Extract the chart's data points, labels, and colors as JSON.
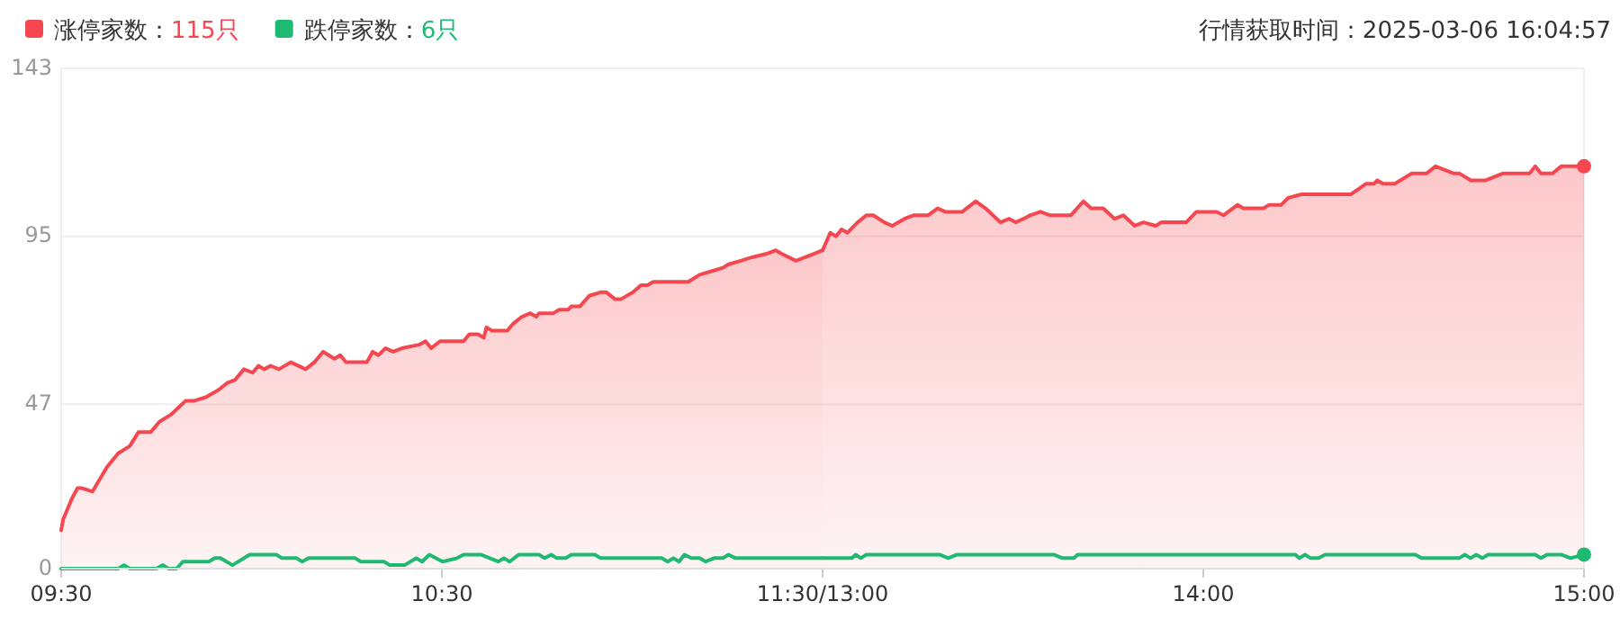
{
  "chart_data": [
    {
      "type": "area",
      "xlim": [
        9.5,
        11.5
      ],
      "xticks": [
        {
          "value": 9.5,
          "label": "09:30"
        },
        {
          "value": 10.5,
          "label": "10:30"
        },
        {
          "value": 11.5,
          "label": "11:30/13:00"
        }
      ],
      "ylim": [
        0,
        143
      ],
      "yticks": [
        0,
        47,
        95,
        143
      ],
      "grid": "y",
      "legend": "top left",
      "series": [
        {
          "name": "涨停家数：115只",
          "color": "#f5474f",
          "x": [
            9.5,
            9.505,
            9.528,
            9.543,
            9.555,
            9.582,
            9.62,
            9.65,
            9.68,
            9.703,
            9.735,
            9.758,
            9.788,
            9.827,
            9.85,
            9.88,
            9.912,
            9.935,
            9.957,
            9.98,
            10.003,
            10.018,
            10.033,
            10.05,
            10.072,
            10.103,
            10.142,
            10.165,
            10.188,
            10.218,
            10.233,
            10.248,
            10.303,
            10.318,
            10.333,
            10.352,
            10.372,
            10.395,
            10.44,
            10.457,
            10.472,
            10.495,
            10.557,
            10.572,
            10.595,
            10.61,
            10.617,
            10.632,
            10.672,
            10.687,
            10.71,
            10.732,
            10.748,
            10.755,
            10.793,
            10.808,
            10.832,
            10.84,
            10.863,
            10.887,
            10.917,
            10.932,
            10.955,
            10.97,
            11.002,
            11.023,
            11.04,
            11.055,
            11.147,
            11.177,
            11.208,
            11.238,
            11.253,
            11.285,
            11.315,
            11.353,
            11.377,
            11.392,
            11.43,
            11.477,
            11.5
          ],
          "values": [
            11,
            14,
            20,
            23,
            23,
            22,
            29,
            33,
            35,
            39,
            39,
            42,
            44,
            48,
            48,
            49,
            51,
            53,
            54,
            57,
            56,
            58,
            57,
            58,
            57,
            59,
            57,
            59,
            62,
            60,
            61,
            59,
            59,
            62,
            61,
            63,
            62,
            63,
            64,
            65,
            63,
            65,
            65,
            67,
            67,
            66,
            69,
            68,
            68,
            70,
            72,
            73,
            72,
            73,
            73,
            74,
            74,
            75,
            75,
            78,
            79,
            79,
            77,
            77,
            79,
            81,
            81,
            82,
            82,
            84,
            85,
            86,
            87,
            88,
            89,
            90,
            91,
            90,
            88,
            90,
            91
          ]
        },
        {
          "name": "跌停家数：6只",
          "type": "line",
          "color": "#1fba72",
          "x": [
            9.5,
            9.65,
            9.665,
            9.68,
            9.75,
            9.767,
            9.782,
            9.803,
            9.82,
            9.888,
            9.903,
            9.918,
            9.95,
            9.995,
            10.065,
            10.08,
            10.118,
            10.133,
            10.15,
            10.272,
            10.287,
            10.348,
            10.363,
            10.402,
            10.433,
            10.448,
            10.467,
            10.502,
            10.54,
            10.557,
            10.602,
            10.648,
            10.663,
            10.678,
            10.702,
            10.755,
            10.77,
            10.787,
            10.802,
            10.825,
            10.84,
            10.902,
            10.917,
            11.078,
            11.093,
            11.108,
            11.123,
            11.137,
            11.155,
            11.177,
            11.193,
            11.215,
            11.238,
            11.253,
            11.27,
            11.5
          ],
          "values": [
            0,
            0,
            1,
            0,
            0,
            1,
            0,
            0,
            2,
            2,
            3,
            3,
            1,
            4,
            4,
            3,
            3,
            2,
            3,
            3,
            2,
            2,
            1,
            1,
            3,
            2,
            4,
            2,
            3,
            4,
            4,
            2,
            3,
            2,
            4,
            4,
            3,
            4,
            3,
            3,
            4,
            4,
            3,
            3,
            2,
            3,
            2,
            4,
            3,
            3,
            2,
            3,
            3,
            4,
            3,
            3
          ]
        }
      ]
    },
    {
      "type": "area",
      "xlim": [
        13,
        15
      ],
      "xticks": [
        {
          "value": 14,
          "label": "14:00"
        },
        {
          "value": 15,
          "label": "15:00"
        }
      ],
      "ylim": [
        0,
        143
      ],
      "yticks": [
        0,
        47,
        95,
        143
      ],
      "grid": "y",
      "tick_labels": "x",
      "annotations": [
        "行情获取时间：2025-03-06 16:04:57"
      ],
      "series": [
        {
          "color": "#f5474f",
          "x": [
            13,
            13.02,
            13.035,
            13.05,
            13.065,
            13.092,
            13.115,
            13.133,
            13.162,
            13.183,
            13.215,
            13.238,
            13.277,
            13.302,
            13.322,
            13.367,
            13.402,
            13.428,
            13.467,
            13.49,
            13.507,
            13.528,
            13.545,
            13.572,
            13.598,
            13.652,
            13.685,
            13.705,
            13.737,
            13.767,
            13.79,
            13.82,
            13.843,
            13.875,
            13.89,
            13.955,
            13.982,
            14.035,
            14.053,
            14.09,
            14.105,
            14.158,
            14.173,
            14.205,
            14.223,
            14.258,
            14.273,
            14.388,
            14.427,
            14.448,
            14.457,
            14.472,
            14.503,
            14.548,
            14.587,
            14.61,
            14.657,
            14.672,
            14.703,
            14.742,
            14.788,
            14.857,
            14.872,
            14.887,
            14.918,
            14.94,
            15
          ],
          "values": [
            91,
            96,
            95,
            97,
            96,
            99,
            101,
            101,
            99,
            98,
            100,
            101,
            101,
            103,
            102,
            102,
            105,
            103,
            99,
            100,
            99,
            100,
            101,
            102,
            101,
            101,
            105,
            103,
            103,
            100,
            101,
            98,
            99,
            98,
            99,
            99,
            102,
            102,
            101,
            104,
            103,
            103,
            104,
            104,
            106,
            107,
            107,
            107,
            110,
            110,
            111,
            110,
            110,
            113,
            113,
            115,
            113,
            113,
            111,
            111,
            113,
            113,
            115,
            113,
            113,
            115,
            115
          ]
        },
        {
          "type": "line",
          "color": "#1fba72",
          "x": [
            13,
            13.077,
            13.087,
            13.1,
            13.115,
            13.307,
            13.33,
            13.353,
            13.607,
            13.63,
            13.66,
            13.67,
            14.242,
            14.252,
            14.267,
            14.282,
            14.303,
            14.32,
            14.557,
            14.573,
            14.672,
            14.687,
            14.702,
            14.717,
            14.733,
            14.748,
            14.872,
            14.887,
            14.903,
            14.94,
            14.965,
            15
          ],
          "values": [
            3,
            3,
            4,
            3,
            4,
            4,
            3,
            4,
            4,
            3,
            3,
            4,
            4,
            3,
            4,
            3,
            3,
            4,
            4,
            3,
            3,
            4,
            3,
            4,
            3,
            4,
            4,
            3,
            4,
            4,
            3,
            4
          ]
        }
      ]
    }
  ]
}
